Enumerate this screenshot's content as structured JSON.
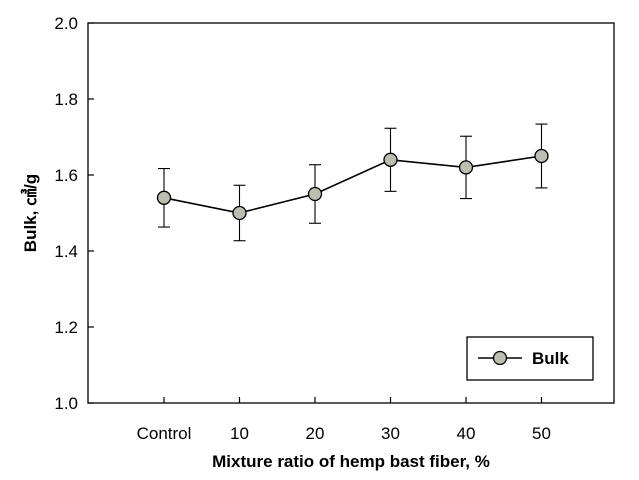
{
  "chart_data": {
    "type": "line",
    "title": "",
    "xlabel": "Mixture ratio of hemp bast fiber, %",
    "ylabel": "Bulk, ㎤/g",
    "categories": [
      "Control",
      "10",
      "20",
      "30",
      "40",
      "50"
    ],
    "ylim": [
      1.0,
      2.0
    ],
    "yticks": [
      "1.0",
      "1.2",
      "1.4",
      "1.6",
      "1.8",
      "2.0"
    ],
    "grid": false,
    "legend_position": "bottom-right",
    "series": [
      {
        "name": "Bulk",
        "values": [
          1.54,
          1.5,
          1.55,
          1.64,
          1.62,
          1.65
        ],
        "error": [
          0.077,
          0.073,
          0.077,
          0.083,
          0.082,
          0.084
        ],
        "marker_color": "#bdbdb2",
        "line_color": "#000000"
      }
    ]
  }
}
